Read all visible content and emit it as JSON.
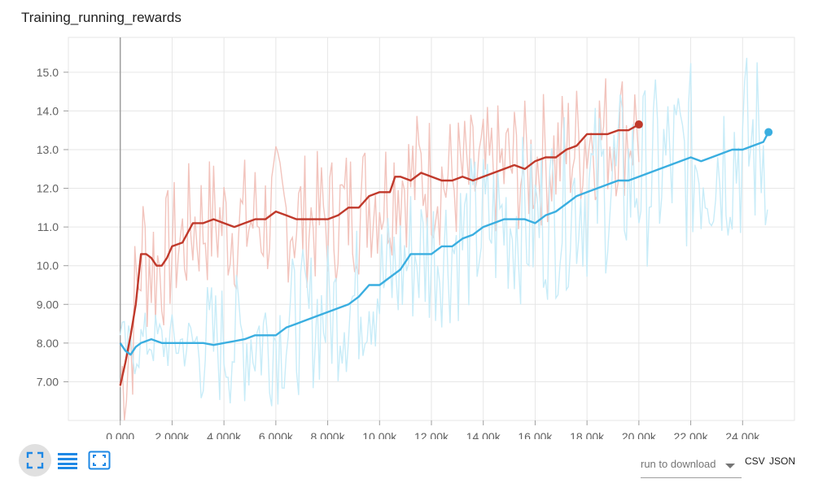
{
  "title": "Training_running_rewards",
  "chart_data": {
    "type": "line",
    "xlim": [
      -2000,
      26000
    ],
    "ylim": [
      6.0,
      15.9
    ],
    "x_ticks": [
      0,
      2000,
      4000,
      6000,
      8000,
      10000,
      12000,
      14000,
      16000,
      18000,
      20000,
      22000,
      24000
    ],
    "x_tick_labels": [
      "0.000",
      "2.000k",
      "4.000k",
      "6.000k",
      "8.000k",
      "10.00k",
      "12.00k",
      "14.00k",
      "16.00k",
      "18.00k",
      "20.00k",
      "22.00k",
      "24.00k"
    ],
    "y_ticks": [
      7,
      8,
      9,
      10,
      11,
      12,
      13,
      14,
      15
    ],
    "y_tick_labels": [
      "7.00",
      "8.00",
      "9.00",
      "10.0",
      "11.0",
      "12.0",
      "13.0",
      "14.0",
      "15.0"
    ],
    "grid": true,
    "series": [
      {
        "color": "#c0392b",
        "raw_color": "#f2c4bd",
        "x": [
          0,
          200,
          400,
          600,
          800,
          1000,
          1200,
          1400,
          1600,
          1800,
          2000,
          2400,
          2800,
          3200,
          3600,
          4000,
          4400,
          4800,
          5200,
          5600,
          6000,
          6400,
          6800,
          7200,
          7600,
          8000,
          8400,
          8800,
          9200,
          9600,
          10000,
          10400,
          10600,
          10800,
          11200,
          11600,
          12000,
          12400,
          12800,
          13200,
          13600,
          14000,
          14400,
          14800,
          15200,
          15600,
          16000,
          16400,
          16800,
          17200,
          17600,
          18000,
          18400,
          18800,
          19200,
          19600,
          20000
        ],
        "y": [
          6.9,
          7.5,
          8.2,
          9.0,
          10.3,
          10.3,
          10.2,
          10.0,
          10.0,
          10.2,
          10.5,
          10.6,
          11.1,
          11.1,
          11.2,
          11.1,
          11.0,
          11.1,
          11.2,
          11.2,
          11.4,
          11.3,
          11.2,
          11.2,
          11.2,
          11.2,
          11.3,
          11.5,
          11.5,
          11.8,
          11.9,
          11.9,
          12.3,
          12.3,
          12.2,
          12.4,
          12.3,
          12.2,
          12.2,
          12.3,
          12.2,
          12.3,
          12.4,
          12.5,
          12.6,
          12.5,
          12.7,
          12.8,
          12.8,
          13.0,
          13.1,
          13.4,
          13.4,
          13.4,
          13.5,
          13.5,
          13.65
        ]
      },
      {
        "color": "#3aaee0",
        "raw_color": "#c8ecf8",
        "x": [
          0,
          200,
          400,
          600,
          800,
          1200,
          1600,
          2000,
          2400,
          2800,
          3200,
          3600,
          4000,
          4400,
          4800,
          5200,
          5600,
          6000,
          6400,
          6800,
          7200,
          7600,
          8000,
          8400,
          8800,
          9200,
          9600,
          10000,
          10400,
          10800,
          11200,
          11600,
          12000,
          12400,
          12800,
          13200,
          13600,
          14000,
          14400,
          14800,
          15200,
          15600,
          16000,
          16400,
          16800,
          17200,
          17600,
          18000,
          18400,
          18800,
          19200,
          19600,
          20000,
          20400,
          20800,
          21200,
          21600,
          22000,
          22400,
          22800,
          23200,
          23600,
          24000,
          24400,
          24800,
          25000
        ],
        "y": [
          8.0,
          7.8,
          7.7,
          7.9,
          8.0,
          8.1,
          8.0,
          8.0,
          8.0,
          8.0,
          8.0,
          7.95,
          8.0,
          8.05,
          8.1,
          8.2,
          8.2,
          8.2,
          8.4,
          8.5,
          8.6,
          8.7,
          8.8,
          8.9,
          9.0,
          9.2,
          9.5,
          9.5,
          9.7,
          9.9,
          10.3,
          10.3,
          10.3,
          10.5,
          10.5,
          10.7,
          10.8,
          11.0,
          11.1,
          11.2,
          11.2,
          11.2,
          11.1,
          11.3,
          11.4,
          11.6,
          11.8,
          11.9,
          12.0,
          12.1,
          12.2,
          12.2,
          12.3,
          12.4,
          12.5,
          12.6,
          12.7,
          12.8,
          12.7,
          12.8,
          12.9,
          13.0,
          13.0,
          13.1,
          13.2,
          13.45
        ]
      }
    ]
  },
  "toolbar": {
    "fit_icon": "fit-domain-icon",
    "log_icon": "log-scale-icon",
    "domain_icon": "expand-icon"
  },
  "download": {
    "select_label": "run to download",
    "csv_label": "CSV",
    "json_label": "JSON"
  }
}
